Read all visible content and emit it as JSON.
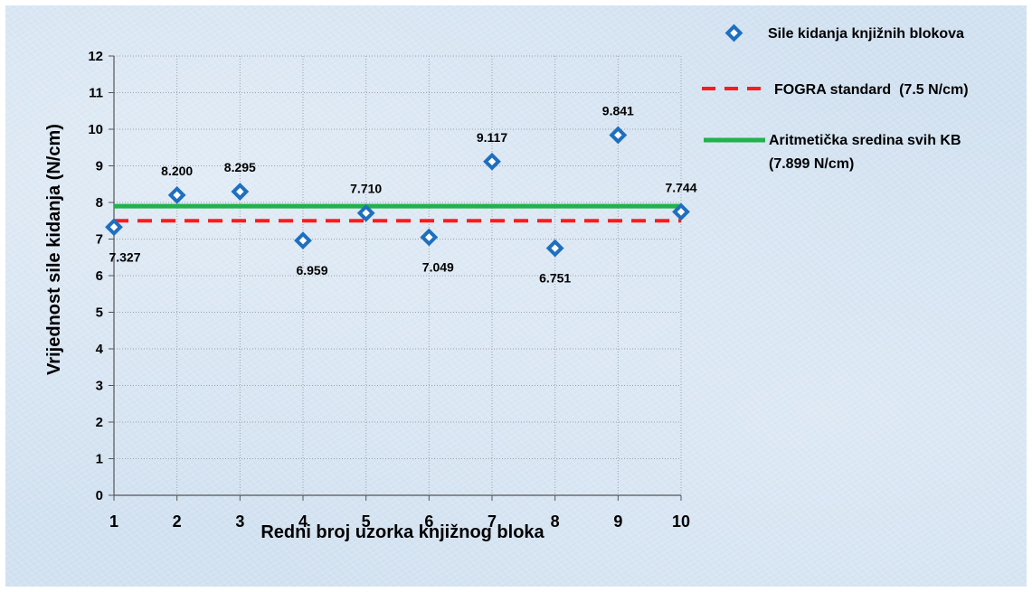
{
  "chart_data": {
    "type": "scatter",
    "xlabel": "Redni broj uzorka knjižnog bloka",
    "ylabel": "Vrijednost sile kidanja (N/cm)",
    "x_ticks": [
      "1",
      "2",
      "3",
      "4",
      "5",
      "6",
      "7",
      "8",
      "9",
      "10"
    ],
    "y_ticks": [
      "0",
      "1",
      "2",
      "3",
      "4",
      "5",
      "6",
      "7",
      "8",
      "9",
      "10",
      "11",
      "12"
    ],
    "xlim": [
      1,
      10
    ],
    "ylim": [
      0,
      12
    ],
    "grid": true,
    "legend_position": "right",
    "series": [
      {
        "name": "Sile kidanja knjižnih blokova",
        "kind": "scatter",
        "marker": "diamond",
        "color": "#1f6fbf",
        "x": [
          1,
          2,
          3,
          4,
          5,
          6,
          7,
          8,
          9,
          10
        ],
        "y": [
          7.327,
          8.2,
          8.295,
          6.959,
          7.71,
          7.049,
          9.117,
          6.751,
          9.841,
          7.744
        ],
        "labels": [
          "7.327",
          "8.200",
          "8.295",
          "6.959",
          "7.710",
          "7.049",
          "9.117",
          "6.751",
          "9.841",
          "7.744"
        ]
      },
      {
        "name": "FOGRA standard  (7.5 N/cm)",
        "kind": "line",
        "style": "dashed",
        "color": "#ff1a1a",
        "x": [
          1,
          10
        ],
        "y": [
          7.5,
          7.5
        ]
      },
      {
        "name": "Aritmetička sredina svih KB",
        "name_line2": "(7.899 N/cm)",
        "kind": "line",
        "style": "solid",
        "color": "#22b14c",
        "x": [
          1,
          10
        ],
        "y": [
          7.899,
          7.899
        ]
      }
    ]
  }
}
